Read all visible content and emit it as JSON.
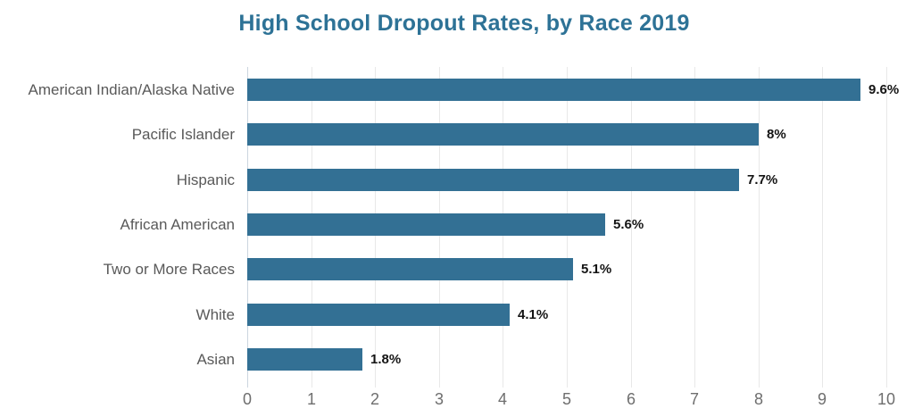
{
  "title": "High School Dropout Rates, by Race 2019",
  "chart_data": {
    "type": "bar",
    "orientation": "horizontal",
    "title": "High School Dropout Rates, by Race 2019",
    "categories": [
      "American Indian/Alaska Native",
      "Pacific Islander",
      "Hispanic",
      "African American",
      "Two or More Races",
      "White",
      "Asian"
    ],
    "values": [
      9.6,
      8,
      7.7,
      5.6,
      5.1,
      4.1,
      1.8
    ],
    "value_labels": [
      "9.6%",
      "8%",
      "7.7%",
      "5.6%",
      "5.1%",
      "4.1%",
      "1.8%"
    ],
    "xlabel": "",
    "ylabel": "",
    "xlim": [
      0,
      10
    ],
    "x_ticks": [
      0,
      1,
      2,
      3,
      4,
      5,
      6,
      7,
      8,
      9,
      10
    ],
    "grid": "vertical",
    "legend": "none",
    "colors": {
      "bar": "#337094",
      "title": "#2d7296",
      "category_label": "#595959",
      "tick_label": "#6e6e6e",
      "value_label": "#141414",
      "gridline": "#e8e8e8",
      "zero_line": "#ccd5df"
    }
  }
}
